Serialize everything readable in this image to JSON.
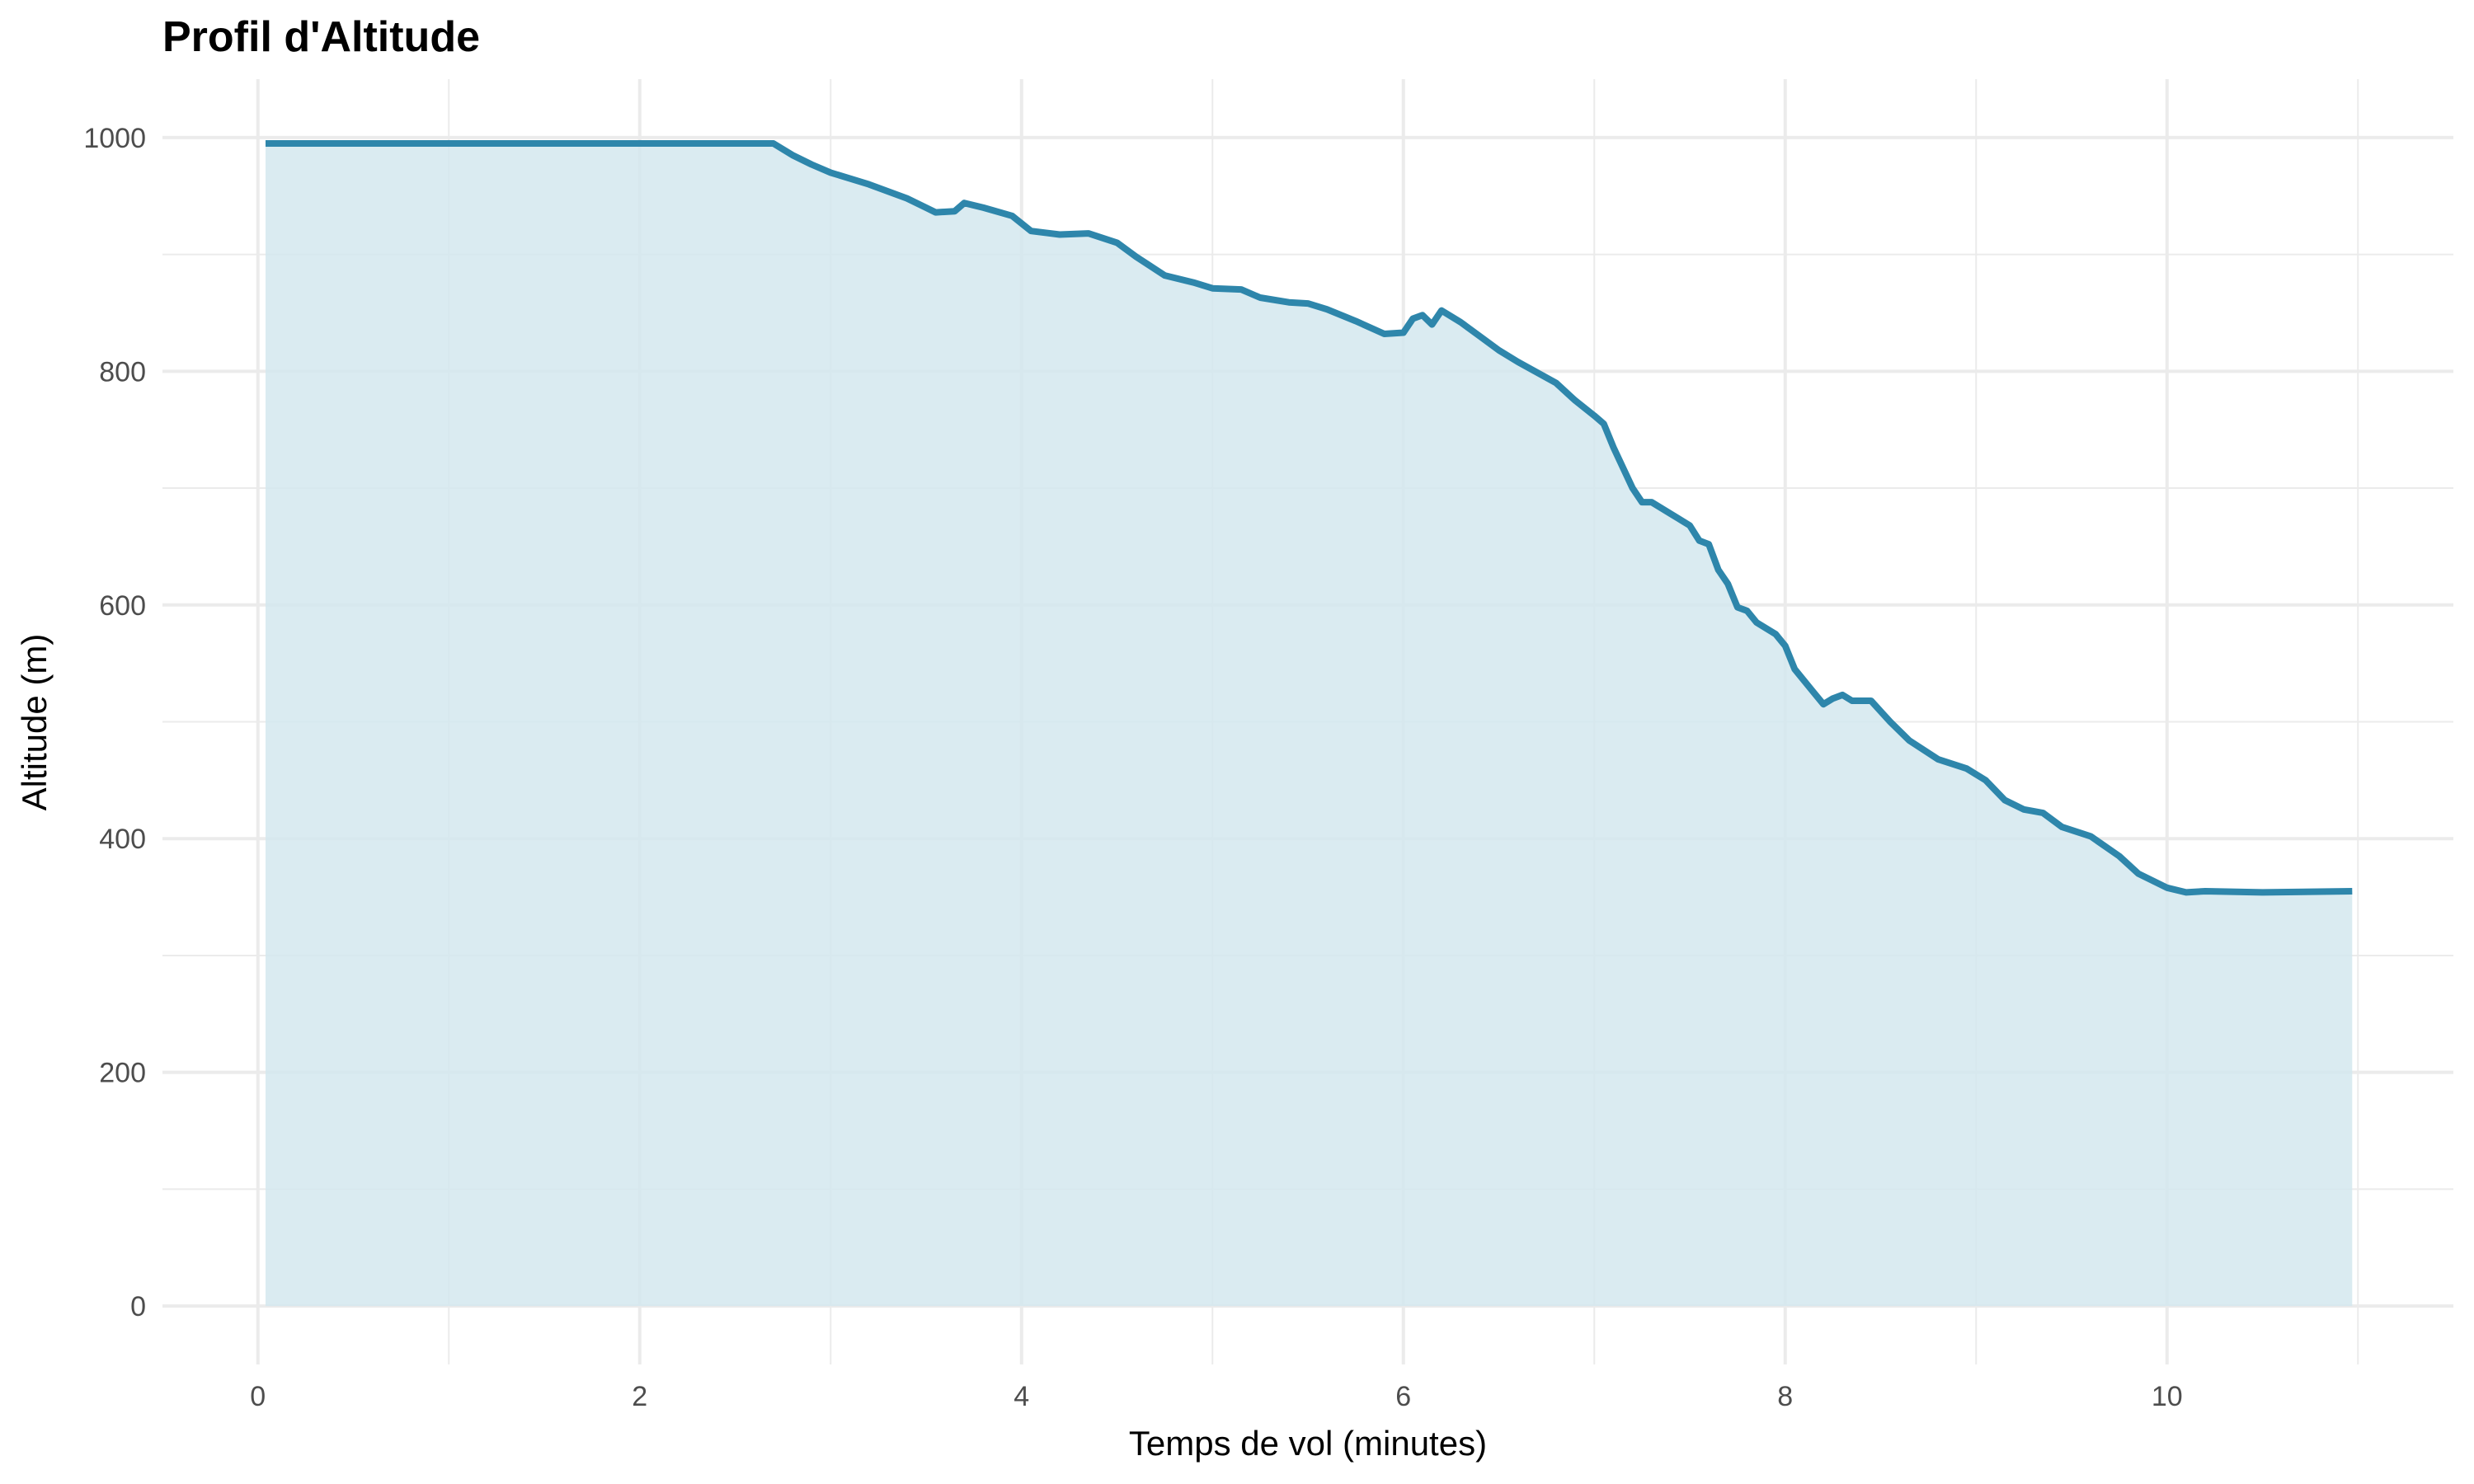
{
  "chart_data": {
    "type": "area",
    "title": "Profil d'Altitude",
    "xlabel": "Temps de vol (minutes)",
    "ylabel": "Altitude (m)",
    "xlim": [
      -0.5,
      11.5
    ],
    "ylim": [
      -50,
      1050
    ],
    "x_ticks": [
      0,
      2,
      4,
      6,
      8,
      10
    ],
    "y_ticks": [
      0,
      200,
      400,
      600,
      800,
      1000
    ],
    "grid": true,
    "colors": {
      "line": "#2e86ab",
      "fill": "#d4e7ee",
      "grid": "#ebebeb"
    },
    "series": [
      {
        "x": [
          0.04,
          2.7,
          2.8,
          2.9,
          3.0,
          3.2,
          3.4,
          3.55,
          3.65,
          3.7,
          3.8,
          3.95,
          4.05,
          4.2,
          4.35,
          4.5,
          4.6,
          4.75,
          4.9,
          5.0,
          5.15,
          5.25,
          5.4,
          5.5,
          5.6,
          5.75,
          5.9,
          6.0,
          6.05,
          6.1,
          6.15,
          6.2,
          6.3,
          6.4,
          6.5,
          6.6,
          6.8,
          6.9,
          7.0,
          7.05,
          7.1,
          7.2,
          7.25,
          7.3,
          7.4,
          7.5,
          7.55,
          7.6,
          7.65,
          7.7,
          7.75,
          7.8,
          7.85,
          7.95,
          8.0,
          8.05,
          8.15,
          8.2,
          8.25,
          8.3,
          8.35,
          8.45,
          8.55,
          8.65,
          8.8,
          8.95,
          9.05,
          9.15,
          9.25,
          9.35,
          9.45,
          9.6,
          9.75,
          9.85,
          10.0,
          10.1,
          10.2,
          10.5,
          10.97
        ],
        "y": [
          995,
          995,
          985,
          977,
          970,
          960,
          948,
          936,
          937,
          944,
          940,
          933,
          920,
          917,
          918,
          910,
          898,
          882,
          876,
          871,
          870,
          863,
          859,
          858,
          853,
          843,
          832,
          833,
          845,
          848,
          840,
          852,
          842,
          830,
          818,
          808,
          790,
          775,
          762,
          755,
          735,
          700,
          688,
          688,
          678,
          668,
          655,
          652,
          630,
          618,
          598,
          595,
          585,
          575,
          565,
          545,
          525,
          515,
          520,
          523,
          518,
          518,
          500,
          484,
          468,
          460,
          450,
          433,
          425,
          422,
          410,
          402,
          385,
          370,
          358,
          354,
          355,
          354,
          355
        ]
      }
    ]
  }
}
